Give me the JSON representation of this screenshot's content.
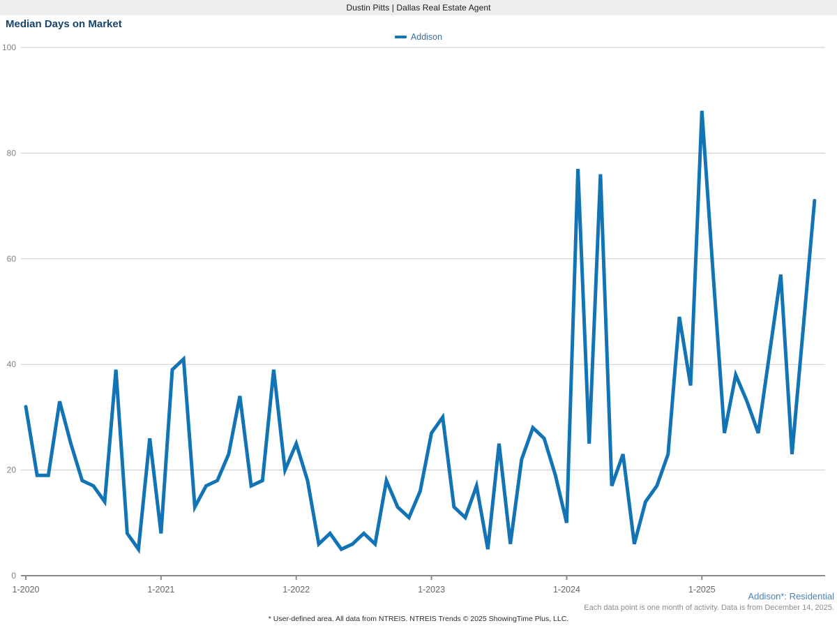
{
  "header": {
    "banner": "Dustin Pitts | Dallas Real Estate Agent"
  },
  "chart": {
    "title": "Median Days on Market",
    "legend_label": "Addison"
  },
  "notes": {
    "area_note": "Addison*: Residential",
    "data_note": "Each data point is one month of activity. Data is from December 14, 2025.",
    "footnote": "* User-defined area. All data from NTREIS. NTREIS Trends © 2025 ShowingTime Plus, LLC."
  },
  "colors": {
    "line": "#1273b5",
    "title": "#17456b",
    "gridline": "#c9c9c9",
    "axis": "#8a8a8a",
    "y_tick_label": "#808080",
    "x_tick_label": "#666666",
    "banner_bg": "#ededed"
  },
  "chart_data": {
    "type": "line",
    "title": "Median Days on Market",
    "legend_position": "top-center",
    "grid": "horizontal",
    "ylim": [
      0,
      100
    ],
    "y_ticks": [
      0,
      20,
      40,
      60,
      80,
      100
    ],
    "x_interval": "month",
    "x_tick_labels": [
      "1-2020",
      "1-2021",
      "1-2022",
      "1-2023",
      "1-2024",
      "1-2025"
    ],
    "x": [
      "1-2020",
      "2-2020",
      "3-2020",
      "4-2020",
      "5-2020",
      "6-2020",
      "7-2020",
      "8-2020",
      "9-2020",
      "10-2020",
      "11-2020",
      "12-2020",
      "1-2021",
      "2-2021",
      "3-2021",
      "4-2021",
      "5-2021",
      "6-2021",
      "7-2021",
      "8-2021",
      "9-2021",
      "10-2021",
      "11-2021",
      "12-2021",
      "1-2022",
      "2-2022",
      "3-2022",
      "4-2022",
      "5-2022",
      "6-2022",
      "7-2022",
      "8-2022",
      "9-2022",
      "10-2022",
      "11-2022",
      "12-2022",
      "1-2023",
      "2-2023",
      "3-2023",
      "4-2023",
      "5-2023",
      "6-2023",
      "7-2023",
      "8-2023",
      "9-2023",
      "10-2023",
      "11-2023",
      "12-2023",
      "1-2024",
      "2-2024",
      "3-2024",
      "4-2024",
      "5-2024",
      "6-2024",
      "7-2024",
      "8-2024",
      "9-2024",
      "10-2024",
      "11-2024",
      "12-2024",
      "1-2025",
      "2-2025",
      "3-2025",
      "4-2025",
      "5-2025",
      "6-2025",
      "7-2025",
      "8-2025",
      "9-2025",
      "10-2025",
      "11-2025"
    ],
    "series": [
      {
        "name": "Addison",
        "values": [
          32,
          19,
          19,
          33,
          25,
          18,
          17,
          14,
          39,
          8,
          5,
          26,
          8,
          39,
          41,
          13,
          17,
          18,
          23,
          34,
          17,
          18,
          39,
          20,
          25,
          18,
          6,
          8,
          5,
          6,
          8,
          6,
          18,
          13,
          11,
          16,
          27,
          30,
          13,
          11,
          17,
          5,
          25,
          6,
          22,
          28,
          26,
          19,
          10,
          77,
          25,
          76,
          17,
          23,
          6,
          14,
          17,
          23,
          49,
          36,
          88,
          57,
          27,
          38,
          33,
          27,
          42,
          57,
          23,
          47,
          71
        ]
      }
    ]
  }
}
